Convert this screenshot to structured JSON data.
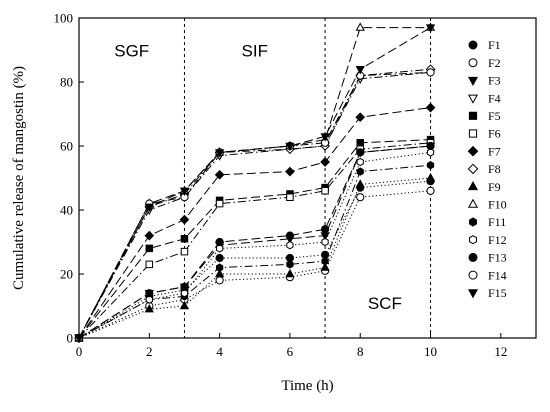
{
  "chart_data": {
    "type": "line",
    "xlabel": "Time (h)",
    "ylabel": "Cumulative release of mangostin (%)",
    "xlim": [
      0,
      13
    ],
    "ylim": [
      0,
      100
    ],
    "xticks": [
      0,
      2,
      4,
      6,
      8,
      10,
      12
    ],
    "yticks": [
      0,
      20,
      40,
      60,
      80,
      100
    ],
    "grid": false,
    "legend_position": "right",
    "phase_dividers": [
      3,
      7,
      10
    ],
    "phase_labels": [
      {
        "text": "SGF",
        "x": 1.5,
        "y": 88
      },
      {
        "text": "SIF",
        "x": 5.0,
        "y": 88
      },
      {
        "text": "SCF",
        "x": 8.7,
        "y": 9
      }
    ],
    "x": [
      0,
      2,
      3,
      4,
      6,
      7,
      8,
      10
    ],
    "series": [
      {
        "name": "F1",
        "marker": "circle-filled",
        "dash": "dot",
        "values": [
          0,
          13,
          15,
          25,
          25,
          26,
          47,
          49
        ]
      },
      {
        "name": "F2",
        "marker": "circle-open",
        "dash": "dot",
        "values": [
          0,
          10,
          12,
          18,
          19,
          21,
          44,
          46
        ]
      },
      {
        "name": "F3",
        "marker": "tri-down-filled",
        "dash": "longdash",
        "values": [
          0,
          14,
          16,
          29,
          31,
          32,
          58,
          60
        ]
      },
      {
        "name": "F4",
        "marker": "tri-down-open",
        "dash": "dashdot",
        "values": [
          0,
          40,
          44,
          57,
          59,
          60,
          81,
          83
        ]
      },
      {
        "name": "F5",
        "marker": "square-filled",
        "dash": "longdash",
        "values": [
          0,
          28,
          31,
          43,
          45,
          47,
          61,
          62
        ]
      },
      {
        "name": "F6",
        "marker": "square-open",
        "dash": "dashdot",
        "values": [
          0,
          23,
          27,
          42,
          44,
          46,
          59,
          61
        ]
      },
      {
        "name": "F7",
        "marker": "diamond-filled",
        "dash": "longdash",
        "values": [
          0,
          32,
          37,
          51,
          52,
          55,
          69,
          72
        ]
      },
      {
        "name": "F8",
        "marker": "diamond-open",
        "dash": "dashdot",
        "values": [
          0,
          41,
          45,
          58,
          59,
          60,
          82,
          84
        ]
      },
      {
        "name": "F9",
        "marker": "tri-up-filled",
        "dash": "dot",
        "values": [
          0,
          9,
          10,
          20,
          20,
          22,
          48,
          50
        ]
      },
      {
        "name": "F10",
        "marker": "tri-up-open",
        "dash": "longdash",
        "values": [
          0,
          42,
          46,
          58,
          60,
          62,
          97,
          97
        ]
      },
      {
        "name": "F11",
        "marker": "hexagon-filled",
        "dash": "dashdot",
        "values": [
          0,
          12,
          13,
          22,
          23,
          24,
          52,
          54
        ]
      },
      {
        "name": "F12",
        "marker": "hexagon-open",
        "dash": "dot",
        "values": [
          0,
          12,
          14,
          28,
          29,
          30,
          55,
          58
        ]
      },
      {
        "name": "F13",
        "marker": "circle-filled",
        "dash": "longdash",
        "values": [
          0,
          14,
          16,
          30,
          32,
          34,
          58,
          60
        ]
      },
      {
        "name": "F14",
        "marker": "circle-open",
        "dash": "dashdot",
        "values": [
          0,
          42,
          44,
          58,
          60,
          61,
          82,
          83
        ]
      },
      {
        "name": "F15",
        "marker": "tri-down-filled",
        "dash": "longdash",
        "values": [
          0,
          41,
          46,
          58,
          60,
          63,
          84,
          97
        ]
      }
    ]
  }
}
